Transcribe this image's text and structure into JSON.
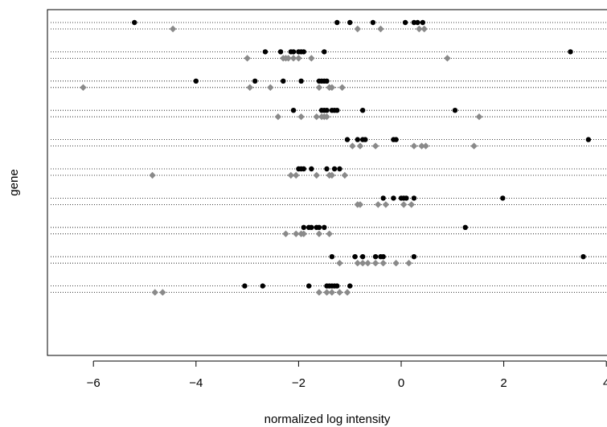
{
  "chart_data": {
    "type": "scatter",
    "title": "",
    "xlabel": "normalized log intensity",
    "ylabel": "gene",
    "xlim": [
      -6.9,
      4.0
    ],
    "x_ticks": [
      -6,
      -4,
      -2,
      0,
      2,
      4
    ],
    "x_tick_labels": [
      "−6",
      "−4",
      "−2",
      "0",
      "2",
      "4"
    ],
    "grid": "dotted horizontal guide line per row",
    "legend": "none",
    "series": [
      {
        "color": "#000000",
        "marker": "circle",
        "rows": [
          [
            -5.2,
            -1.25,
            -1.0,
            -0.55,
            0.08,
            0.25,
            0.32,
            0.42
          ],
          [
            -2.65,
            -2.35,
            -2.15,
            -2.1,
            -2.0,
            -1.95,
            -1.9,
            -1.5,
            3.3
          ],
          [
            -4.0,
            -2.85,
            -2.3,
            -1.95,
            -1.6,
            -1.55,
            -1.5,
            -1.45
          ],
          [
            -2.1,
            -1.55,
            -1.5,
            -1.45,
            -1.35,
            -1.3,
            -1.25,
            -0.75,
            1.05
          ],
          [
            -1.05,
            -0.85,
            -0.75,
            -0.7,
            -0.15,
            -0.1,
            3.65
          ],
          [
            -2.0,
            -1.95,
            -1.9,
            -1.75,
            -1.45,
            -1.3,
            -1.2
          ],
          [
            -0.35,
            -0.15,
            0.0,
            0.05,
            0.1,
            0.25,
            1.98
          ],
          [
            -1.9,
            -1.8,
            -1.75,
            -1.65,
            -1.6,
            -1.5,
            1.25
          ],
          [
            -1.35,
            -0.9,
            -0.75,
            -0.5,
            -0.4,
            -0.35,
            0.25,
            3.55
          ],
          [
            -3.05,
            -2.7,
            -1.8,
            -1.45,
            -1.4,
            -1.35,
            -1.3,
            -1.25,
            -1.0
          ]
        ]
      },
      {
        "color": "#8a8a8a",
        "marker": "diamond",
        "rows": [
          [
            -4.45,
            -0.85,
            -0.4,
            0.35,
            0.45
          ],
          [
            -3.0,
            -2.3,
            -2.25,
            -2.2,
            -2.1,
            -2.0,
            -1.75,
            0.9
          ],
          [
            -6.2,
            -2.95,
            -2.55,
            -1.6,
            -1.4,
            -1.35,
            -1.15
          ],
          [
            -2.4,
            -1.95,
            -1.65,
            -1.55,
            -1.5,
            -1.45,
            1.52
          ],
          [
            -0.95,
            -0.8,
            -0.5,
            0.25,
            0.4,
            0.48,
            1.42
          ],
          [
            -4.85,
            -2.15,
            -2.05,
            -1.65,
            -1.4,
            -1.35,
            -1.1
          ],
          [
            -0.85,
            -0.8,
            -0.45,
            -0.3,
            0.05,
            0.2
          ],
          [
            -2.25,
            -2.05,
            -1.95,
            -1.9,
            -1.6,
            -1.4
          ],
          [
            -1.2,
            -0.85,
            -0.75,
            -0.65,
            -0.5,
            -0.35,
            -0.1,
            0.15
          ],
          [
            -4.8,
            -4.65,
            -1.6,
            -1.45,
            -1.35,
            -1.2,
            -1.05
          ]
        ]
      }
    ]
  }
}
